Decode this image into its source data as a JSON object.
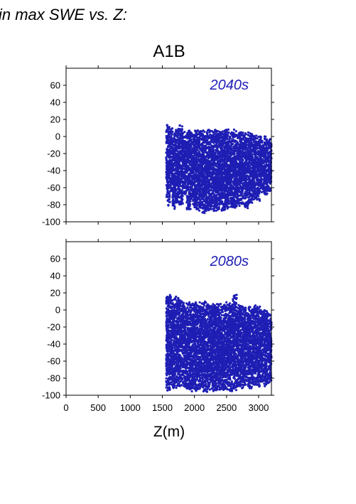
{
  "figure": {
    "title": "in max SWE vs. Z:",
    "scenario": "A1B",
    "xlabel": "Z(m)"
  },
  "chart_data": [
    {
      "type": "scatter",
      "panel_label": "2040s",
      "xlabel": "Z(m)",
      "ylabel": "",
      "xlim": [
        0,
        3200
      ],
      "ylim": [
        -100,
        80
      ],
      "xticks": [
        0,
        500,
        1000,
        1500,
        2000,
        2500,
        3000
      ],
      "yticks": [
        -100,
        -80,
        -60,
        -40,
        -20,
        0,
        20,
        40,
        60
      ],
      "point_color": "#1e1eb4",
      "x_range_of_points": [
        1550,
        3200
      ],
      "bands": [
        {
          "x": 1560,
          "top": 14,
          "bottom": -72
        },
        {
          "x": 1580,
          "top": 13,
          "bottom": -82
        },
        {
          "x": 1620,
          "top": 10,
          "bottom": -65
        },
        {
          "x": 1660,
          "top": 8,
          "bottom": -85
        },
        {
          "x": 1700,
          "top": 12,
          "bottom": -78
        },
        {
          "x": 1760,
          "top": 14,
          "bottom": -80
        },
        {
          "x": 1820,
          "top": 6,
          "bottom": -70
        },
        {
          "x": 1880,
          "top": 7,
          "bottom": -86
        },
        {
          "x": 1940,
          "top": 6,
          "bottom": -82
        },
        {
          "x": 2000,
          "top": 8,
          "bottom": -86
        },
        {
          "x": 2060,
          "top": 7,
          "bottom": -88
        },
        {
          "x": 2120,
          "top": 8,
          "bottom": -90
        },
        {
          "x": 2180,
          "top": 8,
          "bottom": -88
        },
        {
          "x": 2240,
          "top": 7,
          "bottom": -86
        },
        {
          "x": 2300,
          "top": 8,
          "bottom": -88
        },
        {
          "x": 2360,
          "top": 7,
          "bottom": -86
        },
        {
          "x": 2420,
          "top": 8,
          "bottom": -88
        },
        {
          "x": 2480,
          "top": 10,
          "bottom": -86
        },
        {
          "x": 2540,
          "top": 7,
          "bottom": -84
        },
        {
          "x": 2600,
          "top": 8,
          "bottom": -86
        },
        {
          "x": 2660,
          "top": 6,
          "bottom": -82
        },
        {
          "x": 2720,
          "top": 5,
          "bottom": -80
        },
        {
          "x": 2780,
          "top": 5,
          "bottom": -84
        },
        {
          "x": 2840,
          "top": 4,
          "bottom": -80
        },
        {
          "x": 2900,
          "top": 3,
          "bottom": -74
        },
        {
          "x": 2960,
          "top": 3,
          "bottom": -76
        },
        {
          "x": 3020,
          "top": 2,
          "bottom": -70
        },
        {
          "x": 3080,
          "top": 1,
          "bottom": -68
        },
        {
          "x": 3140,
          "top": -2,
          "bottom": -64
        },
        {
          "x": 3190,
          "top": 0,
          "bottom": -58
        }
      ]
    },
    {
      "type": "scatter",
      "panel_label": "2080s",
      "xlabel": "Z(m)",
      "ylabel": "",
      "xlim": [
        0,
        3200
      ],
      "ylim": [
        -100,
        80
      ],
      "xticks": [
        0,
        500,
        1000,
        1500,
        2000,
        2500,
        3000
      ],
      "yticks": [
        -100,
        -80,
        -60,
        -40,
        -20,
        0,
        20,
        40,
        60
      ],
      "point_color": "#1e1eb4",
      "x_range_of_points": [
        1550,
        3200
      ],
      "bands": [
        {
          "x": 1560,
          "top": 22,
          "bottom": -96
        },
        {
          "x": 1580,
          "top": 20,
          "bottom": -94
        },
        {
          "x": 1620,
          "top": 18,
          "bottom": -90
        },
        {
          "x": 1660,
          "top": 14,
          "bottom": -94
        },
        {
          "x": 1700,
          "top": 16,
          "bottom": -92
        },
        {
          "x": 1760,
          "top": 12,
          "bottom": -90
        },
        {
          "x": 1820,
          "top": 10,
          "bottom": -92
        },
        {
          "x": 1880,
          "top": 9,
          "bottom": -94
        },
        {
          "x": 1940,
          "top": 8,
          "bottom": -96
        },
        {
          "x": 2000,
          "top": 9,
          "bottom": -96
        },
        {
          "x": 2060,
          "top": 9,
          "bottom": -96
        },
        {
          "x": 2120,
          "top": 10,
          "bottom": -96
        },
        {
          "x": 2180,
          "top": 9,
          "bottom": -96
        },
        {
          "x": 2240,
          "top": 9,
          "bottom": -96
        },
        {
          "x": 2300,
          "top": 8,
          "bottom": -96
        },
        {
          "x": 2360,
          "top": 9,
          "bottom": -95
        },
        {
          "x": 2420,
          "top": 8,
          "bottom": -96
        },
        {
          "x": 2480,
          "top": 9,
          "bottom": -96
        },
        {
          "x": 2540,
          "top": 8,
          "bottom": -96
        },
        {
          "x": 2600,
          "top": 18,
          "bottom": -94
        },
        {
          "x": 2660,
          "top": 6,
          "bottom": -92
        },
        {
          "x": 2720,
          "top": 7,
          "bottom": -92
        },
        {
          "x": 2780,
          "top": 6,
          "bottom": -90
        },
        {
          "x": 2840,
          "top": 5,
          "bottom": -92
        },
        {
          "x": 2900,
          "top": 7,
          "bottom": -88
        },
        {
          "x": 2960,
          "top": 6,
          "bottom": -90
        },
        {
          "x": 3020,
          "top": 4,
          "bottom": -86
        },
        {
          "x": 3080,
          "top": 0,
          "bottom": -90
        },
        {
          "x": 3140,
          "top": -4,
          "bottom": -86
        },
        {
          "x": 3190,
          "top": -10,
          "bottom": -84
        }
      ]
    }
  ]
}
